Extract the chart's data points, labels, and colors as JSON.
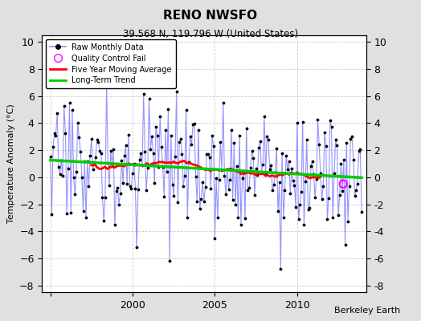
{
  "title": "RENO NWSFO",
  "subtitle": "39.568 N, 119.796 W (United States)",
  "ylabel": "Temperature Anomaly (°C)",
  "credit": "Berkeley Earth",
  "xlim": [
    1994.5,
    2014.2
  ],
  "ylim": [
    -8.5,
    10.5
  ],
  "yticks": [
    -8,
    -6,
    -4,
    -2,
    0,
    2,
    4,
    6,
    8,
    10
  ],
  "xticks": [
    1995,
    2000,
    2005,
    2010
  ],
  "xtick_labels": [
    "",
    "2000",
    "2005",
    "2010"
  ],
  "raw_line_color": "#8888FF",
  "raw_dot_color": "#000000",
  "ma_color": "#FF0000",
  "trend_color": "#00CC00",
  "qc_color": "#FF00FF",
  "background_color": "#E0E0E0",
  "plot_bg_color": "#FFFFFF",
  "grid_color": "#CCCCCC"
}
